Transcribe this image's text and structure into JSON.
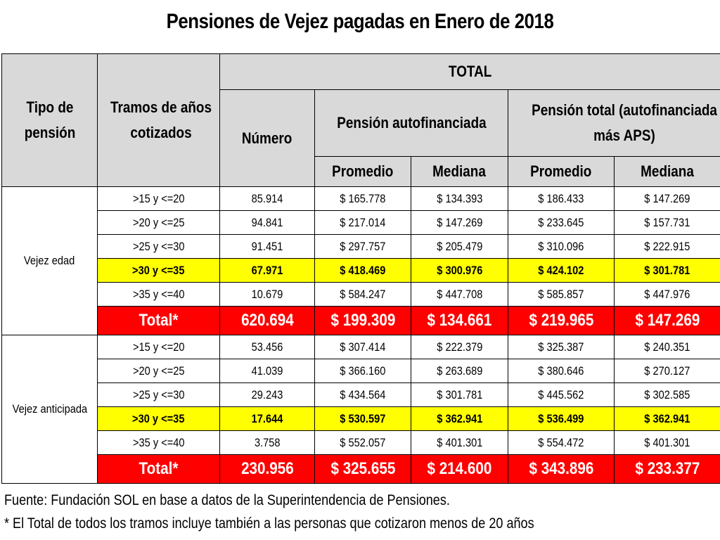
{
  "title": "Pensiones de Vejez pagadas en Enero de 2018",
  "header": {
    "tipo": "Tipo de pensión",
    "tramos": "Tramos de años cotizados",
    "total": "TOTAL",
    "numero": "Número",
    "autofinanciada": "Pensión autofinanciada",
    "pension_total": "Pensión total (autofinanciada más APS)",
    "promedio": "Promedio",
    "mediana": "Mediana"
  },
  "groups": [
    {
      "tipo": "Vejez edad",
      "rows": [
        {
          "tramo": ">15 y <=20",
          "numero": "85.914",
          "auto_prom": "$ 165.778",
          "auto_med": "$ 134.393",
          "tot_prom": "$ 186.433",
          "tot_med": "$ 147.269"
        },
        {
          "tramo": ">20 y <=25",
          "numero": "94.841",
          "auto_prom": "$ 217.014",
          "auto_med": "$ 147.269",
          "tot_prom": "$ 233.645",
          "tot_med": "$ 157.731"
        },
        {
          "tramo": ">25 y <=30",
          "numero": "91.451",
          "auto_prom": "$ 297.757",
          "auto_med": "$ 205.479",
          "tot_prom": "$ 310.096",
          "tot_med": "$ 222.915"
        },
        {
          "tramo": ">30 y <=35",
          "numero": "67.971",
          "auto_prom": "$ 418.469",
          "auto_med": "$ 300.976",
          "tot_prom": "$ 424.102",
          "tot_med": "$ 301.781"
        },
        {
          "tramo": ">35 y <=40",
          "numero": "10.679",
          "auto_prom": "$ 584.247",
          "auto_med": "$ 447.708",
          "tot_prom": "$ 585.857",
          "tot_med": "$ 447.976"
        },
        {
          "tramo": "Total*",
          "numero": "620.694",
          "auto_prom": "$ 199.309",
          "auto_med": "$ 134.661",
          "tot_prom": "$ 219.965",
          "tot_med": "$ 147.269"
        }
      ]
    },
    {
      "tipo": "Vejez anticipada",
      "rows": [
        {
          "tramo": ">15 y <=20",
          "numero": "53.456",
          "auto_prom": "$ 307.414",
          "auto_med": "$ 222.379",
          "tot_prom": "$ 325.387",
          "tot_med": "$ 240.351"
        },
        {
          "tramo": ">20 y <=25",
          "numero": "41.039",
          "auto_prom": "$ 366.160",
          "auto_med": "$ 263.689",
          "tot_prom": "$ 380.646",
          "tot_med": "$ 270.127"
        },
        {
          "tramo": ">25 y <=30",
          "numero": "29.243",
          "auto_prom": "$ 434.564",
          "auto_med": "$ 301.781",
          "tot_prom": "$ 445.562",
          "tot_med": "$ 302.585"
        },
        {
          "tramo": ">30 y <=35",
          "numero": "17.644",
          "auto_prom": "$ 530.597",
          "auto_med": "$ 362.941",
          "tot_prom": "$ 536.499",
          "tot_med": "$ 362.941"
        },
        {
          "tramo": ">35 y <=40",
          "numero": "3.758",
          "auto_prom": "$ 552.057",
          "auto_med": "$ 401.301",
          "tot_prom": "$ 554.472",
          "tot_med": "$ 401.301"
        },
        {
          "tramo": "Total*",
          "numero": "230.956",
          "auto_prom": "$ 325.655",
          "auto_med": "$ 214.600",
          "tot_prom": "$ 343.896",
          "tot_med": "$ 233.377"
        }
      ]
    }
  ],
  "footnotes": [
    "Fuente: Fundación SOL en base a datos de la Superintendencia de Pensiones.",
    "* El Total de todos los tramos incluye también a las personas que cotizaron menos de 20 años"
  ],
  "colors": {
    "highlight": "#ffff00",
    "total": "#ff0000",
    "header": "#d9d9d9"
  }
}
